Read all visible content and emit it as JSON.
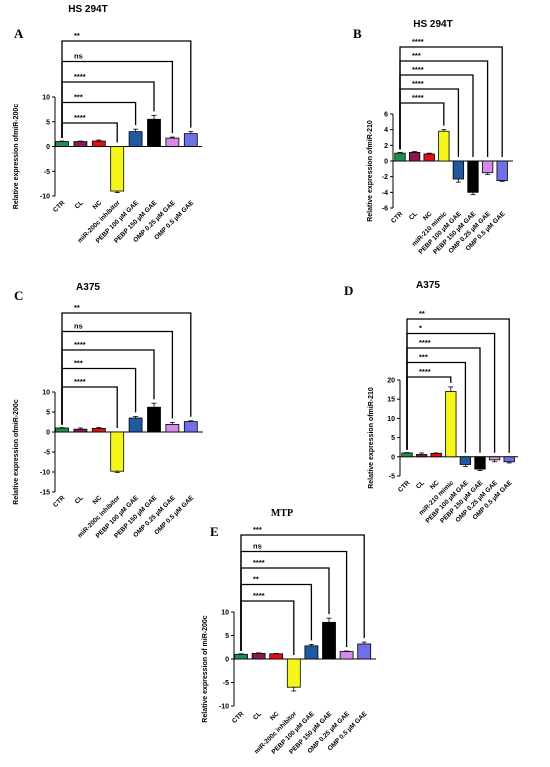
{
  "chart_data": [
    {
      "type": "bar",
      "panel": "A",
      "title": "HS 294T",
      "ylabel": "Relative expression ofmiR-200c",
      "yticks": [
        "10",
        "5",
        "0",
        "-5",
        "-10"
      ],
      "ylim": [
        -10,
        10
      ],
      "categories": [
        "CTR",
        "CL",
        "NC",
        "miR-200c inhibitor",
        "PEBP 100 µM GAE",
        "PEBP 150 µM GAE",
        "OMP 0.25 µM GAE",
        "OMP 0.5 µM GAE"
      ],
      "values": [
        1.0,
        1.0,
        1.1,
        -9.0,
        3.0,
        5.5,
        1.7,
        2.6
      ],
      "errors": [
        0.1,
        0.1,
        0.2,
        0.3,
        0.5,
        0.8,
        0.2,
        0.4
      ],
      "colors": [
        "#1f8f4e",
        "#8b1a4a",
        "#e01010",
        "#f5f51a",
        "#1f5aa0",
        "#000000",
        "#d68ae8",
        "#6f6fe8"
      ],
      "significance": [
        {
          "label": "**",
          "target": 7
        },
        {
          "label": "ns",
          "target": 6
        },
        {
          "label": "****",
          "target": 5
        },
        {
          "label": "***",
          "target": 4
        },
        {
          "label": "****",
          "target": 3
        }
      ]
    },
    {
      "type": "bar",
      "panel": "B",
      "title": "HS 294T",
      "ylabel": "Relative expression ofmiR-210",
      "yticks": [
        "6",
        "4",
        "2",
        "0",
        "-2",
        "-4",
        "-6"
      ],
      "ylim": [
        -6,
        6
      ],
      "categories": [
        "CTR",
        "CL",
        "NC",
        "miR-210 mimic",
        "PEBP 100 µM GAE",
        "PEBP 150 µM GAE",
        "OMP 0.25 µM GAE",
        "OMP 0.5 µM GAE"
      ],
      "values": [
        1.0,
        1.1,
        0.9,
        3.8,
        -2.3,
        -4.0,
        -1.5,
        -2.5
      ],
      "errors": [
        0.1,
        0.1,
        0.1,
        0.2,
        0.4,
        0.3,
        0.2,
        0.1
      ],
      "colors": [
        "#1f8f4e",
        "#8b1a4a",
        "#e01010",
        "#f5f51a",
        "#1f5aa0",
        "#000000",
        "#d68ae8",
        "#6f6fe8"
      ],
      "significance": [
        {
          "label": "****",
          "target": 7
        },
        {
          "label": "***",
          "target": 6
        },
        {
          "label": "****",
          "target": 5
        },
        {
          "label": "****",
          "target": 4
        },
        {
          "label": "****",
          "target": 3
        }
      ]
    },
    {
      "type": "bar",
      "panel": "C",
      "title": "A375",
      "ylabel": "Relative expression ofmiR-200c",
      "yticks": [
        "10",
        "5",
        "0",
        "-5",
        "-10",
        "-15"
      ],
      "ylim": [
        -15,
        10
      ],
      "categories": [
        "CTR",
        "CL",
        "NC",
        "miR-200c inhibitor",
        "PEBP 100 µM GAE",
        "PEBP 150 µM GAE",
        "OMP 0.25 µM GAE",
        "OMP 0.5 µM GAE"
      ],
      "values": [
        1.0,
        0.7,
        0.9,
        -9.8,
        3.5,
        6.2,
        1.9,
        2.6
      ],
      "errors": [
        0.1,
        0.3,
        0.2,
        0.3,
        0.4,
        1.0,
        0.5,
        0.2
      ],
      "colors": [
        "#1f8f4e",
        "#8b1a4a",
        "#e01010",
        "#f5f51a",
        "#1f5aa0",
        "#000000",
        "#d68ae8",
        "#6f6fe8"
      ],
      "significance": [
        {
          "label": "**",
          "target": 7
        },
        {
          "label": "ns",
          "target": 6
        },
        {
          "label": "****",
          "target": 5
        },
        {
          "label": "***",
          "target": 4
        },
        {
          "label": "****",
          "target": 3
        }
      ]
    },
    {
      "type": "bar",
      "panel": "D",
      "title": "A375",
      "ylabel": "Relative expression ofmiR-210",
      "yticks": [
        "20",
        "15",
        "10",
        "5",
        "0",
        "-5"
      ],
      "ylim": [
        -5,
        20
      ],
      "categories": [
        "CTR",
        "CL",
        "NC",
        "miR-210 mimic",
        "PEBP 100 µM GAE",
        "PEBP 150 µM GAE",
        "OMP 0.25 µM GAE",
        "OMP 0.5 µM GAE"
      ],
      "values": [
        1.0,
        0.6,
        0.9,
        17.0,
        -2.0,
        -3.2,
        -0.8,
        -1.3
      ],
      "errors": [
        0.1,
        0.4,
        0.1,
        1.2,
        0.5,
        0.4,
        0.5,
        0.3
      ],
      "colors": [
        "#1f8f4e",
        "#8b1a4a",
        "#e01010",
        "#f5f51a",
        "#1f5aa0",
        "#000000",
        "#d68ae8",
        "#6f6fe8"
      ],
      "significance": [
        {
          "label": "**",
          "target": 7
        },
        {
          "label": "*",
          "target": 6
        },
        {
          "label": "****",
          "target": 5
        },
        {
          "label": "***",
          "target": 4
        },
        {
          "label": "****",
          "target": 3
        }
      ]
    },
    {
      "type": "bar",
      "panel": "E",
      "title": "MTP",
      "ylabel": "Relative expression of miR-200c",
      "yticks": [
        "10",
        "5",
        "0",
        "-5",
        "-10"
      ],
      "ylim": [
        -10,
        10
      ],
      "categories": [
        "CTR",
        "CL",
        "NC",
        "miR-200c inhibitor",
        "PEBP 100 µM GAE",
        "PEBP 150 µM GAE",
        "OMP 0.25 µM GAE",
        "OMP 0.5 µM GAE"
      ],
      "values": [
        1.0,
        1.2,
        1.1,
        -6.0,
        2.8,
        7.8,
        1.6,
        3.2
      ],
      "errors": [
        0.1,
        0.1,
        0.1,
        0.8,
        0.3,
        0.9,
        0.1,
        0.4
      ],
      "colors": [
        "#1f8f4e",
        "#8b1a4a",
        "#e01010",
        "#f5f51a",
        "#1f5aa0",
        "#000000",
        "#d68ae8",
        "#6f6fe8"
      ],
      "significance": [
        {
          "label": "***",
          "target": 7
        },
        {
          "label": "ns",
          "target": 6
        },
        {
          "label": "****",
          "target": 5
        },
        {
          "label": "**",
          "target": 4
        },
        {
          "label": "****",
          "target": 3
        }
      ]
    }
  ]
}
